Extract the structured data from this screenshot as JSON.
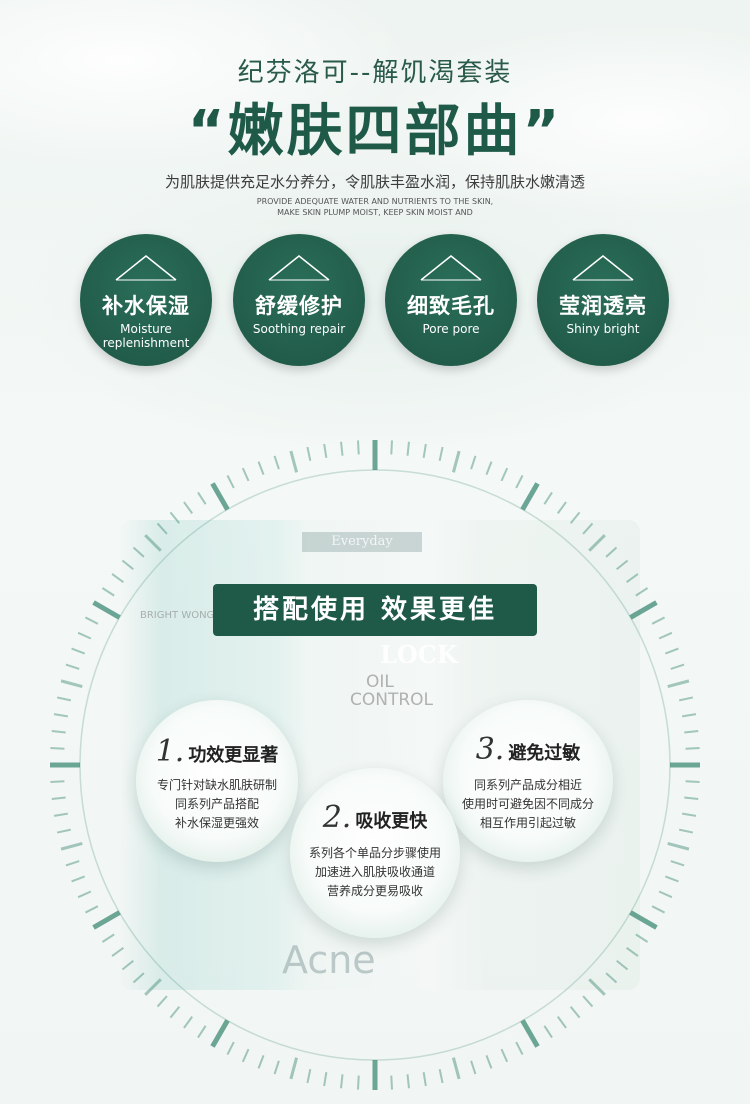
{
  "header": {
    "subtitle": "纪芬洛可--解饥渴套装",
    "title": "“嫩肤四部曲”",
    "description_cn": "为肌肤提供充足水分养分，令肌肤丰盈水润，保持肌肤水嫩清透",
    "description_en_line1": "PROVIDE ADEQUATE WATER AND NUTRIENTS TO THE SKIN,",
    "description_en_line2": "MAKE SKIN PLUMP MOIST, KEEP SKIN MOIST AND"
  },
  "features": [
    {
      "cn": "补水保湿",
      "en": "Moisture replenishment"
    },
    {
      "cn": "舒缓修护",
      "en": "Soothing repair"
    },
    {
      "cn": "细致毛孔",
      "en": "Pore pore"
    },
    {
      "cn": "莹润透亮",
      "en": "Shiny bright"
    }
  ],
  "products": {
    "everyday": "Everyday",
    "lock": "LOCK",
    "oil_control_1": "OIL",
    "oil_control_2": "CONTROL",
    "acne": "Acne",
    "bright": "BRIGHT WONG"
  },
  "banner": "搭配使用 效果更佳",
  "bubbles": [
    {
      "num": "1.",
      "title": "功效更显著",
      "lines": [
        "专门针对缺水肌肤研制",
        "同系列产品搭配",
        "补水保湿更强效"
      ]
    },
    {
      "num": "2.",
      "title": "吸收更快",
      "lines": [
        "系列各个单品分步骤使用",
        "加速进入肌肤吸收通道",
        "营养成分更易吸收"
      ]
    },
    {
      "num": "3.",
      "title": "避免过敏",
      "lines": [
        "同系列产品成分相近",
        "使用时可避免因不同成分",
        "相互作用引起过敏"
      ]
    }
  ],
  "colors": {
    "brand_green": "#1f5a48",
    "dial_green": "#3e8a74"
  }
}
